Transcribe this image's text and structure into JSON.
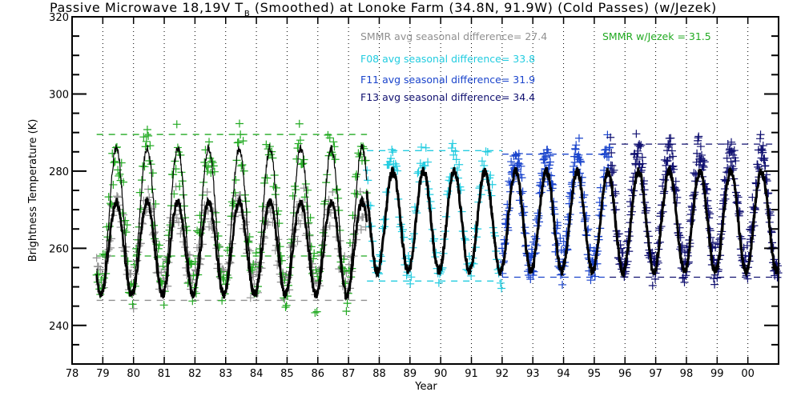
{
  "chart_data": {
    "type": "scatter",
    "title_main": "Passive Microwave 18,19V T",
    "title_sub": "B",
    "title_rest": "(Smoothed) at Lonoke Farm (34.8N, 91.9W) (Cold Passes) (w/Jezek)",
    "xlabel": "Year",
    "ylabel": "Brightness Temperature (K)",
    "xlim": [
      78,
      101
    ],
    "ylim": [
      230,
      320
    ],
    "x_ticks": [
      78,
      79,
      80,
      81,
      82,
      83,
      84,
      85,
      86,
      87,
      88,
      89,
      90,
      91,
      92,
      93,
      94,
      95,
      96,
      97,
      98,
      99,
      100
    ],
    "x_tick_labels": [
      "78",
      "79",
      "80",
      "81",
      "82",
      "83",
      "84",
      "85",
      "86",
      "87",
      "88",
      "89",
      "90",
      "91",
      "92",
      "93",
      "94",
      "95",
      "96",
      "97",
      "98",
      "99",
      "00"
    ],
    "y_major_ticks": [
      240,
      260,
      280,
      300,
      320
    ],
    "y_minor_step": 5,
    "grid": "vertical dotted at each year",
    "annotations": [
      {
        "text": "SMMR avg seasonal difference=  27.4",
        "color": "#909090"
      },
      {
        "text": "SMMR w/Jezek =  31.5",
        "color": "#22aa22"
      },
      {
        "text": "F08 avg seasonal difference=  33.8",
        "color": "#22cce0"
      },
      {
        "text": "F11 avg seasonal difference=  31.9",
        "color": "#1a44cc"
      },
      {
        "text": "F13 avg seasonal difference=  34.4",
        "color": "#101070"
      }
    ],
    "series": [
      {
        "name": "SMMR",
        "color": "#909090",
        "x_range": [
          78.8,
          87.6
        ],
        "mean": 261,
        "amplitude": 10,
        "noise": 4,
        "seasonal_min_line": 246.5,
        "seasonal_max_line": 273.9
      },
      {
        "name": "SMMR w/Jezek",
        "color": "#22aa22",
        "x_range": [
          78.8,
          87.6
        ],
        "mean": 268,
        "amplitude": 18,
        "noise": 5,
        "seasonal_min_line": 258,
        "seasonal_max_line": 289.5
      },
      {
        "name": "F08",
        "color": "#22cce0",
        "x_range": [
          87.6,
          92.0
        ],
        "mean": 268.5,
        "amplitude": 15,
        "noise": 4,
        "seasonal_min_line": 251.5,
        "seasonal_max_line": 285.3
      },
      {
        "name": "F11",
        "color": "#1a44cc",
        "x_range": [
          92.0,
          95.5
        ],
        "mean": 269.5,
        "amplitude": 14,
        "noise": 4,
        "seasonal_min_line": 252.5,
        "seasonal_max_line": 284.4
      },
      {
        "name": "F13",
        "color": "#101070",
        "x_range": [
          95.5,
          101.0
        ],
        "mean": 270,
        "amplitude": 15,
        "noise": 4,
        "seasonal_min_line": 252.5,
        "seasonal_max_line": 287.0
      }
    ],
    "smoothed_series": [
      {
        "name": "smoothed SMMR",
        "color": "#000000",
        "x_range": [
          78.8,
          87.6
        ],
        "note": "thick black smoothed curve"
      },
      {
        "name": "smoothed SMMR w/Jezek",
        "color": "#000000",
        "x_range": [
          78.8,
          87.6
        ],
        "note": "thin black smoothed curve"
      },
      {
        "name": "smoothed SSM/I",
        "color": "#000000",
        "x_range": [
          87.6,
          101.0
        ],
        "note": "thick black smoothed curve"
      }
    ],
    "dashed_lines": [
      {
        "series": "SMMR w/Jezek",
        "color": "#22aa22",
        "y": 289.5,
        "x_range": [
          78.8,
          87.6
        ]
      },
      {
        "series": "SMMR w/Jezek",
        "color": "#22aa22",
        "y": 258,
        "x_range": [
          78.8,
          87.6
        ]
      },
      {
        "series": "SMMR",
        "color": "#909090",
        "y": 246.5,
        "x_range": [
          78.8,
          87.6
        ]
      },
      {
        "series": "F08",
        "color": "#22cce0",
        "y": 285.3,
        "x_range": [
          87.6,
          92.0
        ]
      },
      {
        "series": "F08",
        "color": "#22cce0",
        "y": 251.5,
        "x_range": [
          87.6,
          92.0
        ]
      },
      {
        "series": "F11",
        "color": "#1a44cc",
        "y": 284.4,
        "x_range": [
          92.0,
          95.5
        ]
      },
      {
        "series": "F11",
        "color": "#1a44cc",
        "y": 252.5,
        "x_range": [
          92.0,
          95.5
        ]
      },
      {
        "series": "F13",
        "color": "#101070",
        "y": 287.0,
        "x_range": [
          95.5,
          101.0
        ]
      },
      {
        "series": "F13",
        "color": "#101070",
        "y": 252.5,
        "x_range": [
          95.5,
          101.0
        ]
      }
    ]
  }
}
